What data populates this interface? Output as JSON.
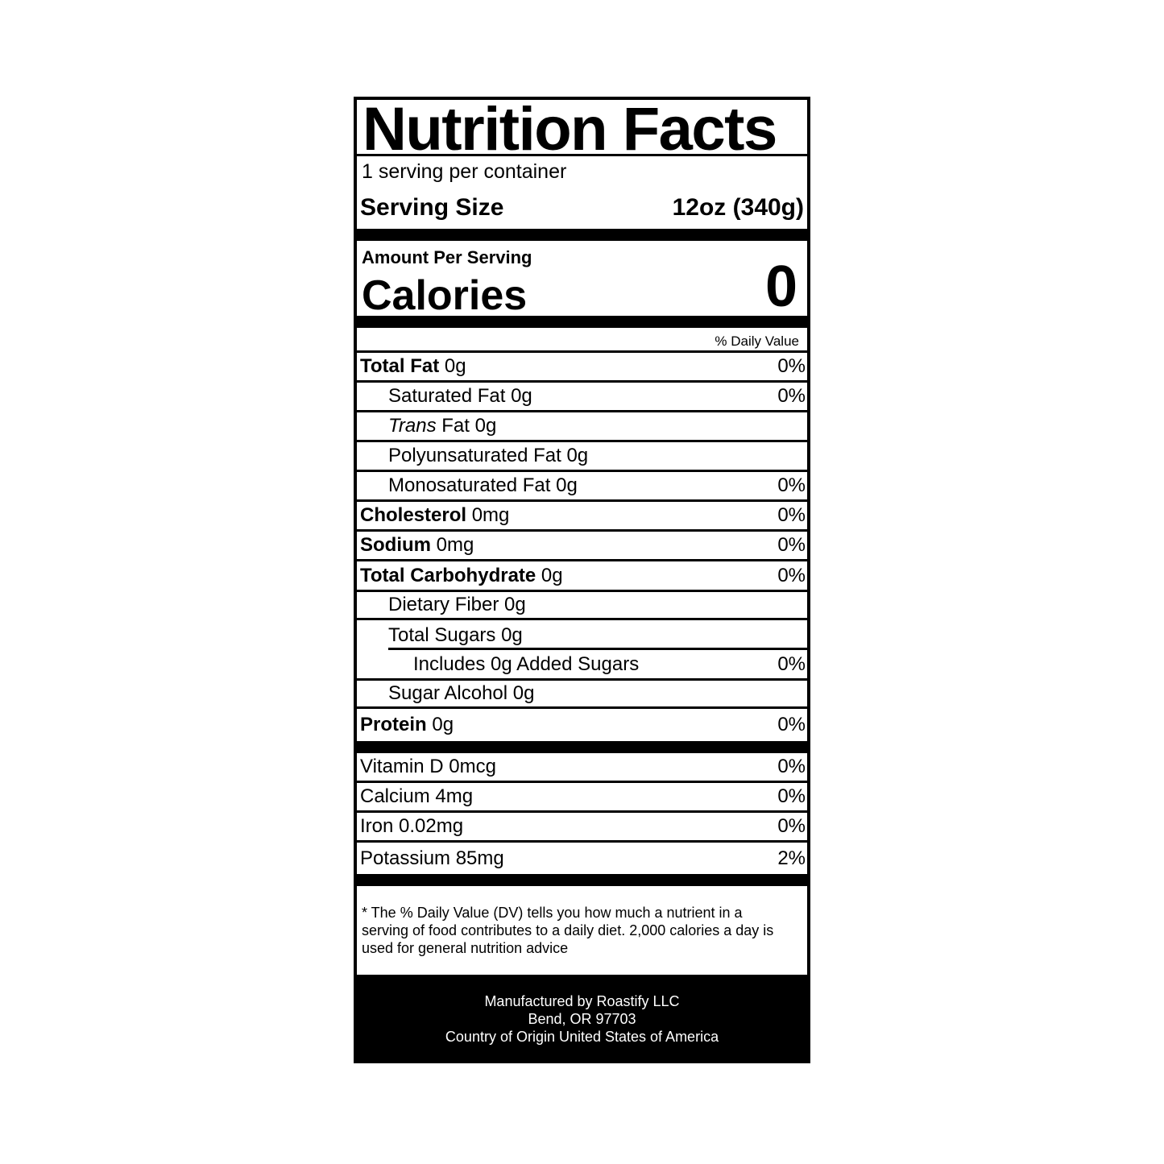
{
  "title": "Nutrition Facts",
  "servings_per_container": "1 serving per container",
  "serving_size": {
    "label": "Serving Size",
    "value": "12oz (340g)"
  },
  "amount_per_serving": "Amount Per Serving",
  "calories": {
    "label": "Calories",
    "value": "0"
  },
  "daily_value_header": "% Daily Value",
  "nutrients": [
    {
      "name": "Total Fat",
      "amount": "0g",
      "dv": "0%"
    },
    {
      "name": "Saturated Fat 0g",
      "dv": "0%"
    },
    {
      "name_italic": "Trans",
      "name": " Fat 0g",
      "dv": ""
    },
    {
      "name": "Polyunsaturated Fat 0g",
      "dv": ""
    },
    {
      "name": "Monosaturated Fat 0g",
      "dv": "0%"
    },
    {
      "name": "Cholesterol",
      "amount": "0mg",
      "dv": "0%"
    },
    {
      "name": "Sodium",
      "amount": "0mg",
      "dv": "0%"
    },
    {
      "name": "Total Carbohydrate",
      "amount": "0g",
      "dv": "0%"
    },
    {
      "name": "Dietary Fiber 0g",
      "dv": ""
    },
    {
      "name": "Total Sugars 0g",
      "dv": ""
    },
    {
      "name": "Includes 0g Added Sugars",
      "dv": "0%"
    },
    {
      "name": "Sugar Alcohol 0g",
      "dv": ""
    },
    {
      "name": "Protein",
      "amount": "0g",
      "dv": "0%"
    }
  ],
  "vitamins": [
    {
      "name": "Vitamin D 0mcg",
      "dv": "0%"
    },
    {
      "name": "Calcium 4mg",
      "dv": "0%"
    },
    {
      "name": "Iron 0.02mg",
      "dv": "0%"
    },
    {
      "name": "Potassium 85mg",
      "dv": "2%"
    }
  ],
  "footnote": "* The % Daily Value (DV) tells you how much a nutrient in a serving of food contributes to a daily diet. 2,000 calories a day is used for general nutrition advice",
  "manufacturer": {
    "line1": "Manufactured by Roastify LLC",
    "line2": "Bend, OR 97703",
    "line3": "Country of Origin United States of America"
  }
}
